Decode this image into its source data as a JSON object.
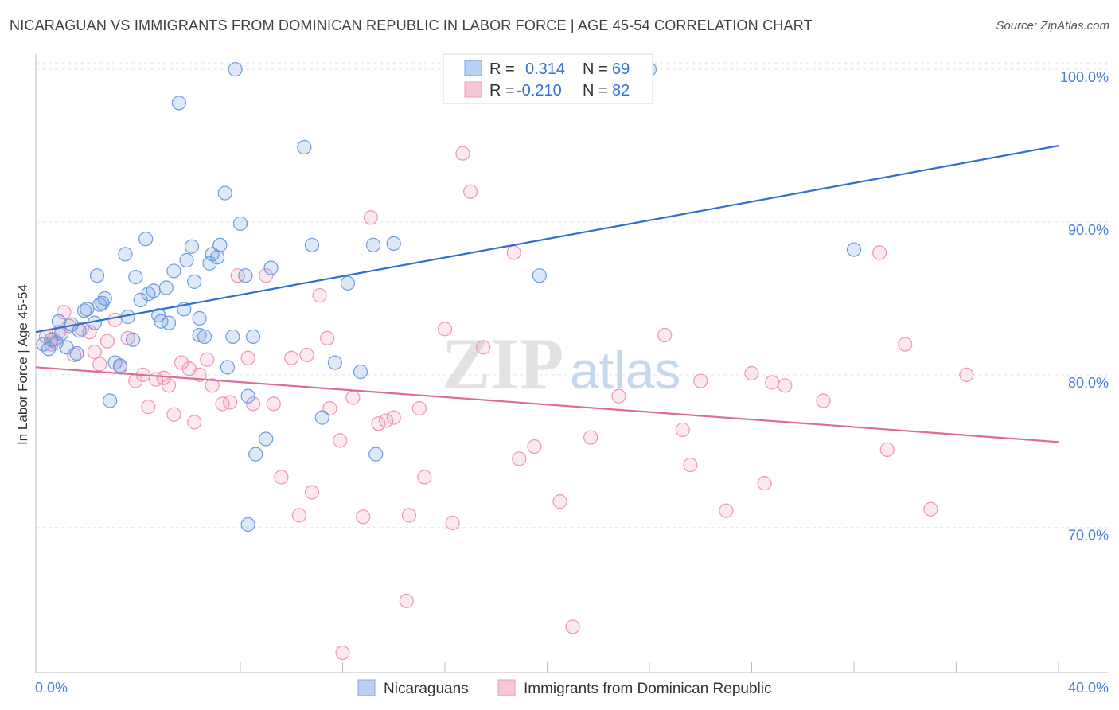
{
  "title": "NICARAGUAN VS IMMIGRANTS FROM DOMINICAN REPUBLIC IN LABOR FORCE | AGE 45-54 CORRELATION CHART",
  "source": "Source: ZipAtlas.com",
  "watermark": "ZIPatlas",
  "colors": {
    "blue": "#6b9be0",
    "blue_line": "#2f6fd4",
    "pink": "#f09ab8",
    "pink_line": "#e0699a",
    "tick": "#4a7fd4"
  },
  "chart_data": {
    "type": "scatter",
    "xlabel": "",
    "ylabel": "In Labor Force | Age 45-54",
    "xlim": [
      0,
      40
    ],
    "ylim": [
      60.5,
      101
    ],
    "x_tick_labels": [
      {
        "value": 0,
        "label": "0.0%"
      },
      {
        "value": 40,
        "label": "40.0%"
      }
    ],
    "y_ticks": [
      {
        "value": 70,
        "label": "70.0%"
      },
      {
        "value": 80,
        "label": "80.0%"
      },
      {
        "value": 90,
        "label": "90.0%"
      },
      {
        "value": 100,
        "label": "100.0%"
      }
    ],
    "stats": [
      {
        "r_label": "R =",
        "r_value": "0.314",
        "n_label": "N =",
        "n_value": "69"
      },
      {
        "r_label": "R =",
        "r_value": "-0.210",
        "n_label": "N =",
        "n_value": "82"
      }
    ],
    "series": [
      {
        "name": "Nicaraguans",
        "color": "#6b9be0",
        "trend": {
          "x0": 0,
          "y0": 82.8,
          "x1": 40,
          "y1": 95.0
        },
        "points": [
          [
            0.3,
            82
          ],
          [
            0.5,
            81.7
          ],
          [
            0.6,
            82.3
          ],
          [
            0.9,
            83.5
          ],
          [
            1.0,
            82.7
          ],
          [
            1.2,
            81.8
          ],
          [
            1.4,
            83.3
          ],
          [
            1.6,
            81.4
          ],
          [
            1.9,
            84.2
          ],
          [
            2.0,
            84.3
          ],
          [
            2.3,
            83.4
          ],
          [
            2.4,
            86.5
          ],
          [
            2.6,
            84.7
          ],
          [
            2.7,
            85.0
          ],
          [
            2.9,
            78.3
          ],
          [
            3.1,
            80.8
          ],
          [
            3.3,
            80.6
          ],
          [
            3.5,
            87.9
          ],
          [
            3.6,
            83.8
          ],
          [
            3.8,
            82.3
          ],
          [
            3.9,
            86.4
          ],
          [
            4.1,
            84.9
          ],
          [
            4.3,
            88.9
          ],
          [
            4.4,
            85.3
          ],
          [
            4.6,
            85.5
          ],
          [
            4.8,
            83.9
          ],
          [
            4.9,
            83.5
          ],
          [
            5.1,
            85.7
          ],
          [
            5.2,
            83.4
          ],
          [
            5.4,
            86.8
          ],
          [
            5.6,
            97.8
          ],
          [
            5.8,
            84.3
          ],
          [
            5.9,
            87.5
          ],
          [
            6.1,
            88.4
          ],
          [
            6.2,
            86.1
          ],
          [
            6.4,
            83.7
          ],
          [
            6.6,
            82.5
          ],
          [
            6.8,
            87.3
          ],
          [
            6.9,
            87.9
          ],
          [
            7.1,
            87.7
          ],
          [
            7.2,
            88.5
          ],
          [
            7.4,
            91.9
          ],
          [
            7.5,
            80.5
          ],
          [
            7.7,
            82.5
          ],
          [
            7.8,
            100
          ],
          [
            8.0,
            89.9
          ],
          [
            8.2,
            86.5
          ],
          [
            8.3,
            78.6
          ],
          [
            8.5,
            82.5
          ],
          [
            8.6,
            74.8
          ],
          [
            9.0,
            75.8
          ],
          [
            9.2,
            87.0
          ],
          [
            10.5,
            94.9
          ],
          [
            10.8,
            88.5
          ],
          [
            11.2,
            77.2
          ],
          [
            11.7,
            80.8
          ],
          [
            12.2,
            86.0
          ],
          [
            12.7,
            80.2
          ],
          [
            13.2,
            88.5
          ],
          [
            13.3,
            74.8
          ],
          [
            14.0,
            88.6
          ],
          [
            8.3,
            70.2
          ],
          [
            19.7,
            86.5
          ],
          [
            24.0,
            100
          ],
          [
            32.0,
            88.2
          ],
          [
            2.5,
            84.6
          ],
          [
            6.4,
            82.6
          ],
          [
            1.7,
            82.9
          ],
          [
            0.8,
            82.1
          ]
        ]
      },
      {
        "name": "Immigrants from Dominican Republic",
        "color": "#f09ab8",
        "trend": {
          "x0": 0,
          "y0": 80.5,
          "x1": 40,
          "y1": 75.6
        },
        "points": [
          [
            0.4,
            82.5
          ],
          [
            0.6,
            82.0
          ],
          [
            0.9,
            82.8
          ],
          [
            1.1,
            84.1
          ],
          [
            1.3,
            83.2
          ],
          [
            1.5,
            81.3
          ],
          [
            1.8,
            83.0
          ],
          [
            2.1,
            82.8
          ],
          [
            2.3,
            81.5
          ],
          [
            2.5,
            80.7
          ],
          [
            2.8,
            82.2
          ],
          [
            3.1,
            83.6
          ],
          [
            3.3,
            80.5
          ],
          [
            3.6,
            82.4
          ],
          [
            3.9,
            79.6
          ],
          [
            4.2,
            80.0
          ],
          [
            4.4,
            77.9
          ],
          [
            4.7,
            79.7
          ],
          [
            5.0,
            79.8
          ],
          [
            5.2,
            79.3
          ],
          [
            5.4,
            77.4
          ],
          [
            5.7,
            80.8
          ],
          [
            6.0,
            80.4
          ],
          [
            6.2,
            76.9
          ],
          [
            6.4,
            80.0
          ],
          [
            6.7,
            81.0
          ],
          [
            6.9,
            79.3
          ],
          [
            7.3,
            78.1
          ],
          [
            7.6,
            78.2
          ],
          [
            7.9,
            86.5
          ],
          [
            8.3,
            81.1
          ],
          [
            8.5,
            78.1
          ],
          [
            9.0,
            86.5
          ],
          [
            9.3,
            78.1
          ],
          [
            9.6,
            73.3
          ],
          [
            10.0,
            81.1
          ],
          [
            10.3,
            70.8
          ],
          [
            10.6,
            81.3
          ],
          [
            10.8,
            72.3
          ],
          [
            11.1,
            85.2
          ],
          [
            11.4,
            82.4
          ],
          [
            11.5,
            77.8
          ],
          [
            11.9,
            75.7
          ],
          [
            12.4,
            78.5
          ],
          [
            12.8,
            70.7
          ],
          [
            13.1,
            90.3
          ],
          [
            13.4,
            76.8
          ],
          [
            13.7,
            77.0
          ],
          [
            14.0,
            77.2
          ],
          [
            14.5,
            65.2
          ],
          [
            14.6,
            70.8
          ],
          [
            15.0,
            77.8
          ],
          [
            15.2,
            73.3
          ],
          [
            16.0,
            83.0
          ],
          [
            16.3,
            70.3
          ],
          [
            16.7,
            94.5
          ],
          [
            17.0,
            92.0
          ],
          [
            17.5,
            81.8
          ],
          [
            18.7,
            88.0
          ],
          [
            18.9,
            74.5
          ],
          [
            19.5,
            75.3
          ],
          [
            20.5,
            71.7
          ],
          [
            21.0,
            63.5
          ],
          [
            21.7,
            75.9
          ],
          [
            22.8,
            78.6
          ],
          [
            24.6,
            82.6
          ],
          [
            25.3,
            76.4
          ],
          [
            25.6,
            74.1
          ],
          [
            26.0,
            79.6
          ],
          [
            27.0,
            71.1
          ],
          [
            28.0,
            80.1
          ],
          [
            28.5,
            72.9
          ],
          [
            28.8,
            79.5
          ],
          [
            29.3,
            79.3
          ],
          [
            30.8,
            78.3
          ],
          [
            33.0,
            88.0
          ],
          [
            33.3,
            75.1
          ],
          [
            34.0,
            82.0
          ],
          [
            35.0,
            71.2
          ],
          [
            36.4,
            80.0
          ],
          [
            12.0,
            61.8
          ],
          [
            0.7,
            82.3
          ]
        ]
      }
    ]
  }
}
